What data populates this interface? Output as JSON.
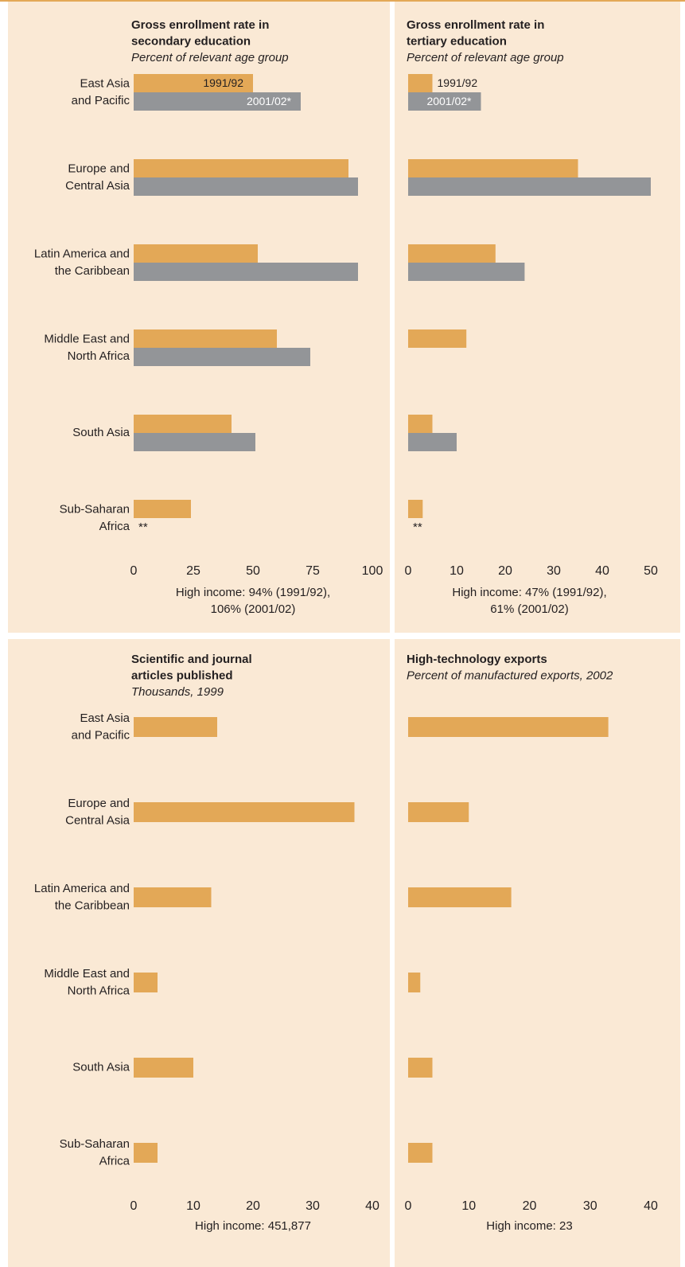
{
  "chart_data": [
    {
      "type": "bar",
      "orientation": "horizontal",
      "title": "Gross enrollment rate in\nsecondary education",
      "subtitle": "Percent of relevant age group",
      "categories": [
        "East Asia\nand Pacific",
        "Europe and\nCentral Asia",
        "Latin America and\nthe Caribbean",
        "Middle East and\nNorth Africa",
        "South Asia",
        "Sub-Saharan\nAfrica"
      ],
      "series": [
        {
          "name": "1991/92",
          "color": "#e3a857",
          "values": [
            50,
            90,
            52,
            60,
            41,
            24
          ]
        },
        {
          "name": "2001/02*",
          "color": "#939598",
          "values": [
            70,
            94,
            94,
            74,
            51,
            null
          ]
        }
      ],
      "xlim": [
        0,
        100
      ],
      "xticks": [
        0,
        25,
        50,
        75,
        100
      ],
      "annotation": "**",
      "note": [
        "High income: 94% (1991/92),",
        "106% (2001/02)"
      ]
    },
    {
      "type": "bar",
      "orientation": "horizontal",
      "title": "Gross enrollment rate in\ntertiary education",
      "subtitle": "Percent of relevant age group",
      "series": [
        {
          "name": "1991/92",
          "color": "#e3a857",
          "values": [
            5,
            35,
            18,
            12,
            5,
            3
          ]
        },
        {
          "name": "2001/02*",
          "color": "#939598",
          "values": [
            15,
            50,
            24,
            null,
            10,
            null
          ]
        }
      ],
      "xlim": [
        0,
        50
      ],
      "xticks": [
        0,
        10,
        20,
        30,
        40,
        50
      ],
      "annotation": "**",
      "note": [
        "High income: 47% (1991/92),",
        "61% (2001/02)"
      ]
    },
    {
      "type": "bar",
      "orientation": "horizontal",
      "title": "Scientific and journal\narticles published",
      "subtitle": "Thousands, 1999",
      "categories": [
        "East Asia\nand Pacific",
        "Europe and\nCentral Asia",
        "Latin America and\nthe Caribbean",
        "Middle East and\nNorth Africa",
        "South Asia",
        "Sub-Saharan\nAfrica"
      ],
      "color": "#e3a857",
      "values": [
        14,
        37,
        13,
        4,
        10,
        4
      ],
      "xlim": [
        0,
        40
      ],
      "xticks": [
        0,
        10,
        20,
        30,
        40
      ],
      "note": [
        "High income: 451,877"
      ]
    },
    {
      "type": "bar",
      "orientation": "horizontal",
      "title": "High-technology exports",
      "subtitle": "Percent of manufactured exports, 2002",
      "color": "#e3a857",
      "values": [
        33,
        10,
        17,
        2,
        4,
        4
      ],
      "xlim": [
        0,
        40
      ],
      "xticks": [
        0,
        10,
        20,
        30,
        40
      ],
      "note": [
        "High income: 23"
      ]
    }
  ]
}
